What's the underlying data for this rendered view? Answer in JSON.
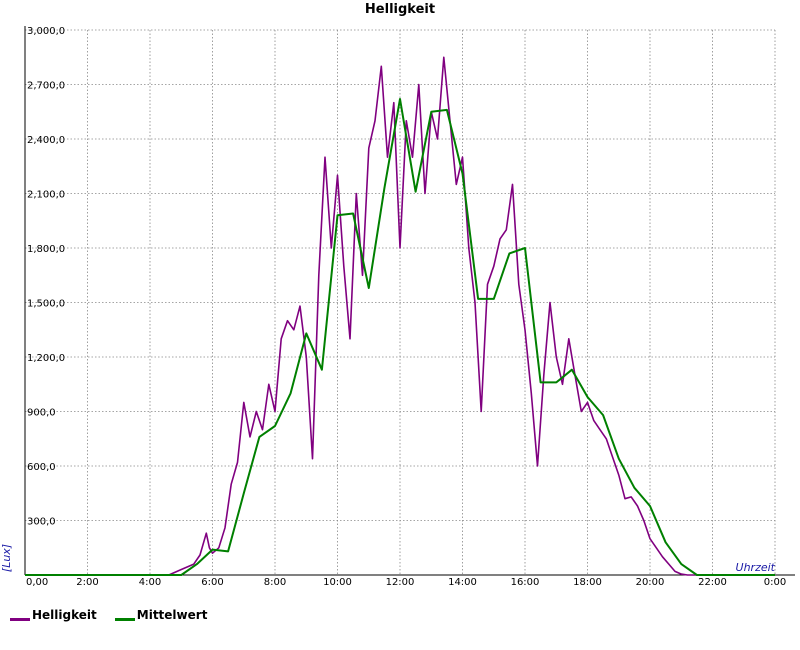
{
  "chart_data": {
    "type": "line",
    "title": "Helligkeit",
    "xlabel": "Uhrzeit",
    "ylabel": "[Lux]",
    "x_unit": "hours",
    "xlim": [
      0,
      24
    ],
    "ylim": [
      0,
      3000
    ],
    "x_ticks": [
      "0,00",
      "2:00",
      "4:00",
      "6:00",
      "8:00",
      "10:00",
      "12:00",
      "14:00",
      "16:00",
      "18:00",
      "20:00",
      "22:00",
      "0:00"
    ],
    "y_ticks": [
      "300,0",
      "600,0",
      "900,0",
      "1,200,0",
      "1,500,0",
      "1,800,0",
      "2,100,0",
      "2,400,0",
      "2,700,0",
      "3,000,0"
    ],
    "y_tick_values": [
      300,
      600,
      900,
      1200,
      1500,
      1800,
      2100,
      2400,
      2700,
      3000
    ],
    "grid": true,
    "legend_position": "bottom-left",
    "series": [
      {
        "name": "Helligkeit",
        "color": "#800080",
        "x": [
          0,
          4.6,
          5.0,
          5.4,
          5.6,
          5.8,
          5.9,
          6.0,
          6.2,
          6.4,
          6.6,
          6.8,
          7.0,
          7.2,
          7.4,
          7.6,
          7.8,
          8.0,
          8.2,
          8.4,
          8.6,
          8.8,
          9.0,
          9.2,
          9.4,
          9.6,
          9.8,
          10.0,
          10.2,
          10.4,
          10.6,
          10.8,
          11.0,
          11.2,
          11.4,
          11.6,
          11.8,
          12.0,
          12.2,
          12.4,
          12.6,
          12.8,
          13.0,
          13.2,
          13.4,
          13.6,
          13.8,
          14.0,
          14.2,
          14.4,
          14.6,
          14.8,
          15.0,
          15.2,
          15.4,
          15.6,
          15.8,
          16.0,
          16.2,
          16.4,
          16.6,
          16.8,
          17.0,
          17.2,
          17.4,
          17.6,
          17.8,
          18.0,
          18.2,
          18.4,
          18.6,
          18.8,
          19.0,
          19.2,
          19.4,
          19.6,
          19.8,
          20.0,
          20.2,
          20.4,
          20.6,
          20.8,
          21.0,
          21.2,
          21.4,
          21.6,
          21.8,
          22.0,
          24.0
        ],
        "y": [
          0,
          0,
          30,
          60,
          110,
          230,
          150,
          120,
          150,
          260,
          500,
          620,
          950,
          760,
          900,
          800,
          1050,
          900,
          1300,
          1400,
          1350,
          1480,
          1200,
          640,
          1650,
          2300,
          1800,
          2200,
          1700,
          1300,
          2100,
          1650,
          2350,
          2500,
          2800,
          2300,
          2600,
          1800,
          2500,
          2300,
          2700,
          2100,
          2550,
          2400,
          2850,
          2500,
          2150,
          2300,
          1800,
          1500,
          900,
          1600,
          1700,
          1850,
          1900,
          2150,
          1600,
          1350,
          1000,
          600,
          1100,
          1500,
          1200,
          1050,
          1300,
          1100,
          900,
          950,
          850,
          800,
          750,
          650,
          550,
          420,
          430,
          380,
          300,
          200,
          150,
          100,
          60,
          20,
          5,
          0,
          0,
          0,
          0,
          0,
          0
        ]
      },
      {
        "name": "Mittelwert",
        "color": "#008000",
        "x": [
          0,
          5.0,
          5.5,
          6.0,
          6.5,
          7.0,
          7.5,
          8.0,
          8.5,
          9.0,
          9.5,
          10.0,
          10.5,
          11.0,
          11.5,
          12.0,
          12.5,
          13.0,
          13.5,
          14.0,
          14.5,
          15.0,
          15.5,
          16.0,
          16.5,
          17.0,
          17.5,
          18.0,
          18.5,
          19.0,
          19.5,
          20.0,
          20.5,
          21.0,
          21.5,
          22.0,
          24.0
        ],
        "y": [
          0,
          0,
          60,
          140,
          130,
          450,
          760,
          820,
          1000,
          1330,
          1130,
          1980,
          1990,
          1580,
          2130,
          2620,
          2110,
          2550,
          2560,
          2210,
          1520,
          1520,
          1770,
          1800,
          1060,
          1060,
          1130,
          980,
          880,
          640,
          480,
          380,
          180,
          60,
          0,
          0,
          0
        ]
      }
    ]
  }
}
